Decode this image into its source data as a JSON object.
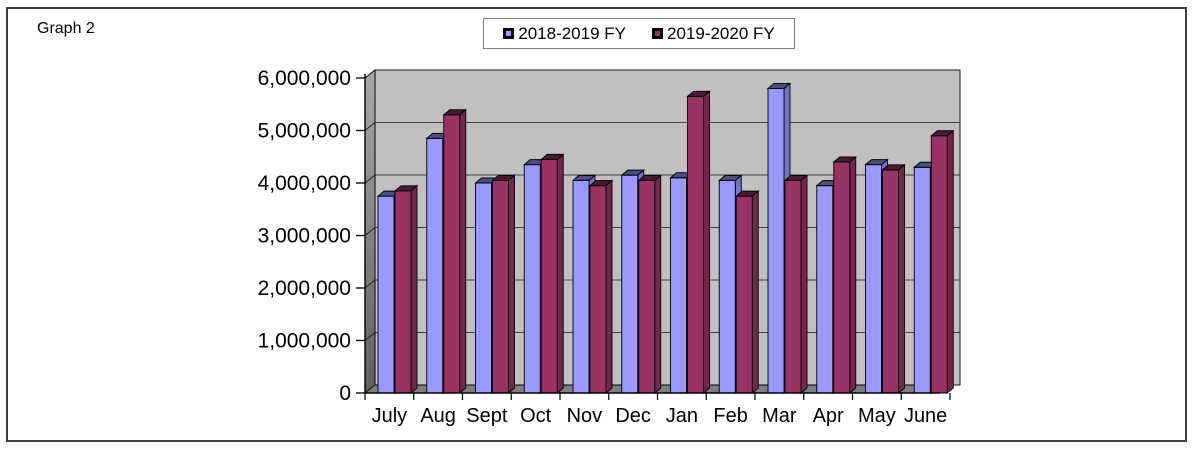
{
  "figure": {
    "label": "Graph 2"
  },
  "legend": {
    "items": [
      {
        "label": "2018-2019 FY",
        "color": "#9999FF"
      },
      {
        "label": "2019-2020 FY",
        "color": "#993366"
      }
    ]
  },
  "chart_data": {
    "type": "bar",
    "style": "3d-clustered-column",
    "title": "Graph 2",
    "categories": [
      "July",
      "Aug",
      "Sept",
      "Oct",
      "Nov",
      "Dec",
      "Jan",
      "Feb",
      "Mar",
      "Apr",
      "May",
      "June"
    ],
    "series": [
      {
        "name": "2018-2019 FY",
        "color": "#9999FF",
        "values": [
          3750000,
          4850000,
          4000000,
          4350000,
          4050000,
          4150000,
          4100000,
          4050000,
          5800000,
          3950000,
          4350000,
          4300000
        ]
      },
      {
        "name": "2019-2020 FY",
        "color": "#993366",
        "values": [
          3850000,
          5300000,
          4050000,
          4450000,
          3950000,
          4050000,
          5650000,
          3750000,
          4050000,
          4400000,
          4250000,
          4900000
        ]
      }
    ],
    "xlabel": "",
    "ylabel": "",
    "ylim": [
      0,
      6000000
    ],
    "ytick_step": 1000000,
    "ytick_labels": [
      "0",
      "1,000,000",
      "2,000,000",
      "3,000,000",
      "4,000,000",
      "5,000,000",
      "6,000,000"
    ],
    "grid": true,
    "legend_position": "top-center",
    "plot_bg_color": "#C0C0C0",
    "wall_color": "#8f8f8f",
    "floor_color": "#7f7f7f",
    "gridline_color": "#3f3f3f"
  }
}
